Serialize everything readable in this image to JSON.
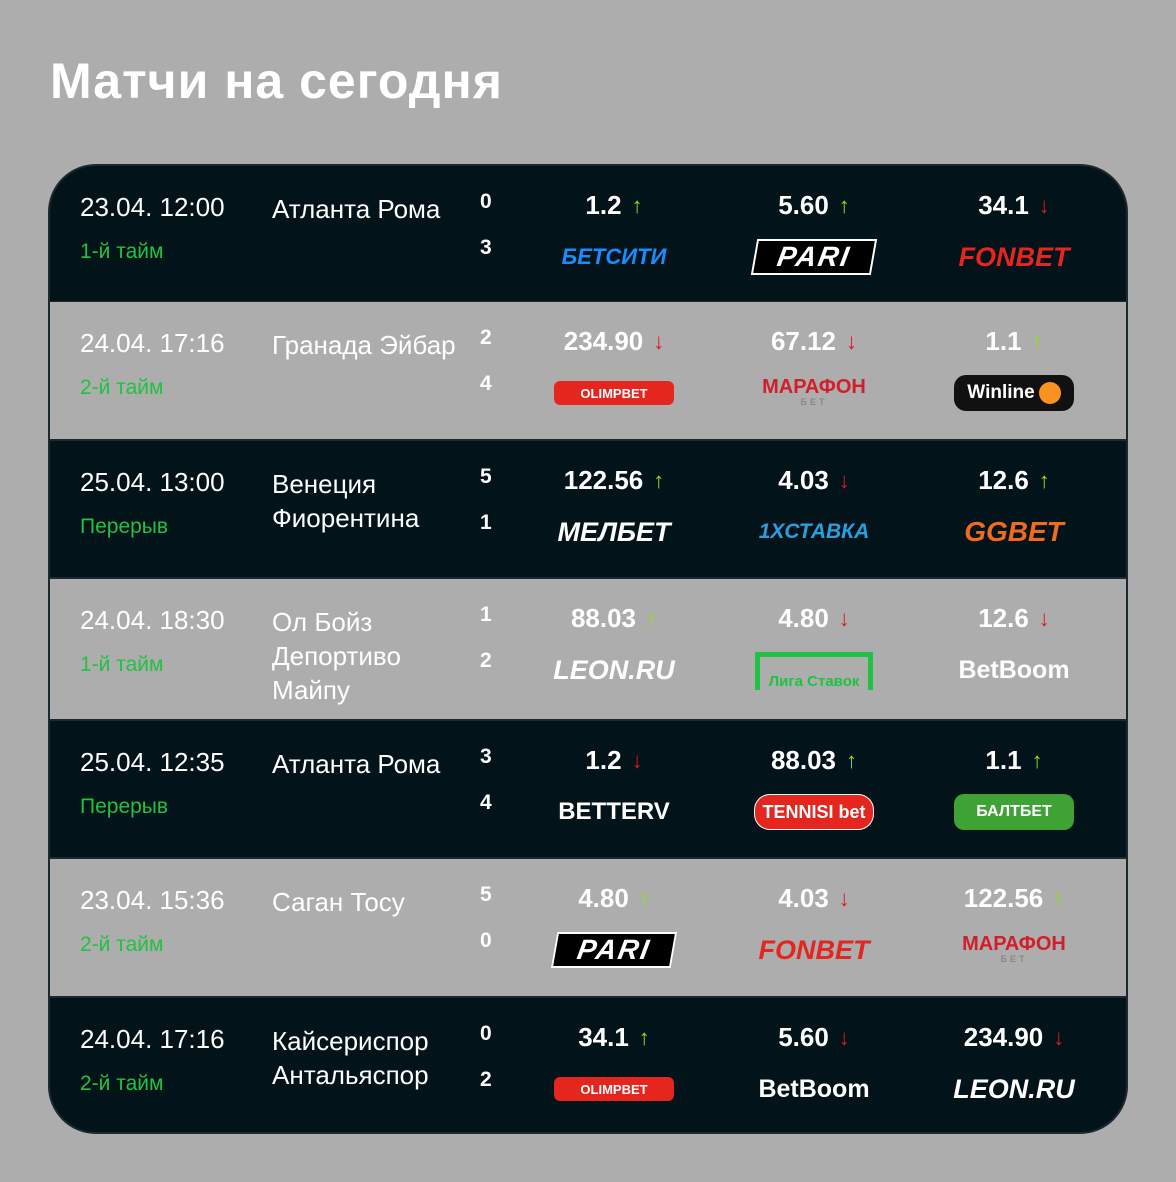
{
  "title": "Матчи на сегодня",
  "colors": {
    "up": "#8fe01a",
    "down": "#e0191e",
    "status": "#1fc241",
    "dark_row": "#02131a",
    "light_row": "#adadad"
  },
  "matches": [
    {
      "date": "23.04. 12:00",
      "status": "1-й тайм",
      "teams": "Атланта Рома",
      "score": [
        "0",
        "3"
      ],
      "odds": [
        {
          "value": "1.2",
          "trend": "up",
          "bookmaker": "БЕТСИТИ",
          "logo": "betcity"
        },
        {
          "value": "5.60",
          "trend": "up",
          "bookmaker": "PARI",
          "logo": "pari"
        },
        {
          "value": "34.1",
          "trend": "down",
          "bookmaker": "FONBET",
          "logo": "fonbet"
        }
      ]
    },
    {
      "date": "24.04. 17:16",
      "status": "2-й тайм",
      "teams": "Гранада Эйбар",
      "score": [
        "2",
        "4"
      ],
      "odds": [
        {
          "value": "234.90",
          "trend": "down",
          "bookmaker": "OLIMPBET",
          "logo": "olimp"
        },
        {
          "value": "67.12",
          "trend": "down",
          "bookmaker": "МАРАФОН",
          "logo": "marathon"
        },
        {
          "value": "1.1",
          "trend": "up",
          "bookmaker": "Winline",
          "logo": "winline"
        }
      ]
    },
    {
      "date": "25.04. 13:00",
      "status": "Перерыв",
      "teams": "Венеция Фиорентина",
      "score": [
        "5",
        "1"
      ],
      "odds": [
        {
          "value": "122.56",
          "trend": "up",
          "bookmaker": "МЕЛБЕТ",
          "logo": "melbet"
        },
        {
          "value": "4.03",
          "trend": "down",
          "bookmaker": "1XСТАВКА",
          "logo": "1x"
        },
        {
          "value": "12.6",
          "trend": "up",
          "bookmaker": "GGBET",
          "logo": "gg"
        }
      ]
    },
    {
      "date": "24.04. 18:30",
      "status": "1-й тайм",
      "teams": "Ол Бойз Депортиво Майпу",
      "score": [
        "1",
        "2"
      ],
      "odds": [
        {
          "value": "88.03",
          "trend": "up",
          "bookmaker": "LEON.RU",
          "logo": "leon"
        },
        {
          "value": "4.80",
          "trend": "down",
          "bookmaker": "Лига Ставок",
          "logo": "liga"
        },
        {
          "value": "12.6",
          "trend": "down",
          "bookmaker": "BetBoom",
          "logo": "betboom"
        }
      ]
    },
    {
      "date": "25.04. 12:35",
      "status": "Перерыв",
      "teams": "Атланта Рома",
      "score": [
        "3",
        "4"
      ],
      "odds": [
        {
          "value": "1.2",
          "trend": "down",
          "bookmaker": "BETTERV",
          "logo": "betterv"
        },
        {
          "value": "88.03",
          "trend": "up",
          "bookmaker": "TENNISI bet",
          "logo": "tennisi"
        },
        {
          "value": "1.1",
          "trend": "up",
          "bookmaker": "БАЛТБЕТ",
          "logo": "baltbet"
        }
      ]
    },
    {
      "date": "23.04. 15:36",
      "status": "2-й тайм",
      "teams": "Саган Тосу",
      "score": [
        "5",
        "0"
      ],
      "odds": [
        {
          "value": "4.80",
          "trend": "up",
          "bookmaker": "PARI",
          "logo": "pari"
        },
        {
          "value": "4.03",
          "trend": "down",
          "bookmaker": "FONBET",
          "logo": "fonbet"
        },
        {
          "value": "122.56",
          "trend": "up",
          "bookmaker": "МАРАФОН",
          "logo": "marathon"
        }
      ]
    },
    {
      "date": "24.04. 17:16",
      "status": "2-й тайм",
      "teams": "Кайсериспор Антальяспор",
      "score": [
        "0",
        "2"
      ],
      "odds": [
        {
          "value": "34.1",
          "trend": "up",
          "bookmaker": "OLIMPBET",
          "logo": "olimp"
        },
        {
          "value": "5.60",
          "trend": "down",
          "bookmaker": "BetBoom",
          "logo": "betboom"
        },
        {
          "value": "234.90",
          "trend": "down",
          "bookmaker": "LEON.RU",
          "logo": "leon"
        }
      ]
    }
  ]
}
